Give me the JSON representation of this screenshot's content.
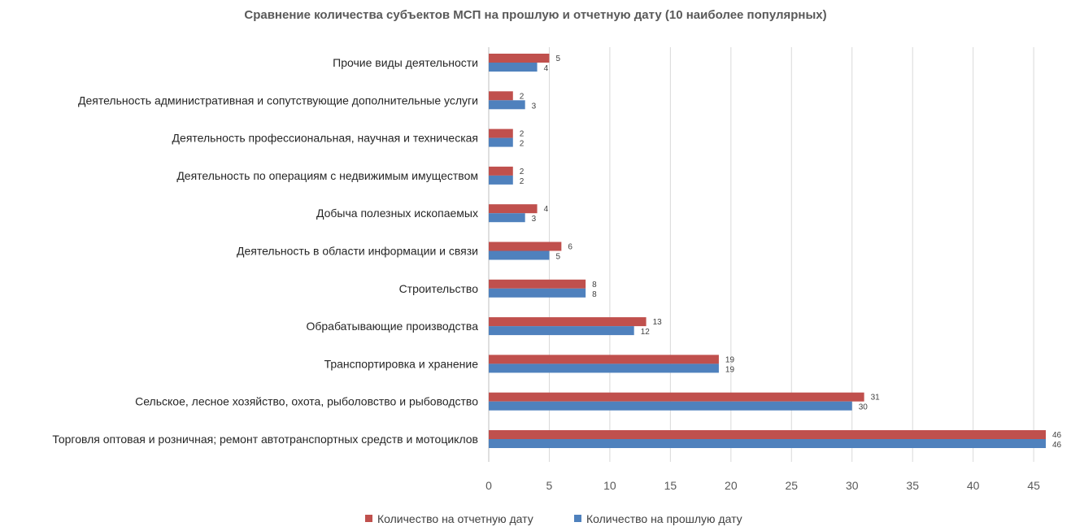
{
  "chart_data": {
    "type": "bar",
    "orientation": "horizontal",
    "title": "Сравнение количества субъектов МСП на прошлую и отчетную дату (10 наиболее популярных)",
    "categories": [
      "Прочие виды деятельности",
      "Деятельность административная и сопутствующие дополнительные услуги",
      "Деятельность профессиональная, научная и техническая",
      "Деятельность по операциям с недвижимым имуществом",
      "Добыча полезных ископаемых",
      "Деятельность в области информации и связи",
      "Строительство",
      "Обрабатывающие производства",
      "Транспортировка и хранение",
      "Сельское, лесное хозяйство, охота, рыболовство и рыбоводство",
      "Торговля оптовая и розничная; ремонт автотранспортных средств и мотоциклов"
    ],
    "series": [
      {
        "name": "Количество на отчетную дату",
        "color": "#c0504d",
        "values": [
          5,
          2,
          2,
          2,
          4,
          6,
          8,
          13,
          19,
          31,
          46
        ]
      },
      {
        "name": "Количество на прошлую дату",
        "color": "#4f81bd",
        "values": [
          4,
          3,
          2,
          2,
          3,
          5,
          8,
          12,
          19,
          30,
          46
        ]
      }
    ],
    "xlim": [
      0,
      46
    ],
    "xticks": [
      0,
      5,
      10,
      15,
      20,
      25,
      30,
      35,
      40,
      45
    ],
    "grid": true,
    "legend_position": "bottom"
  }
}
